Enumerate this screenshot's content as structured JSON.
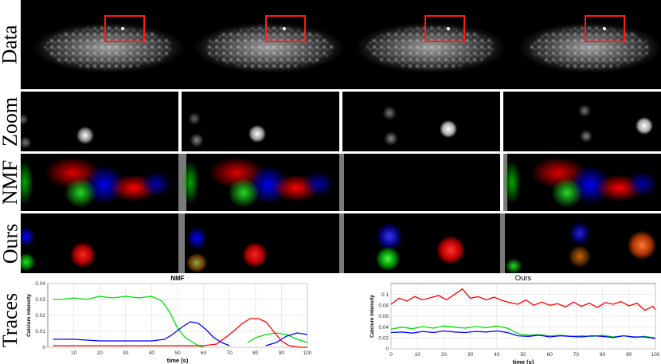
{
  "figure": {
    "row_labels": {
      "data": "Data",
      "zoom": "Zoom",
      "nmf": "NMF",
      "ours": "Ours",
      "traces": "Traces"
    },
    "colors": {
      "red": "#ff0000",
      "green": "#00e000",
      "blue": "#0000ff",
      "box": "#ff1a1a"
    }
  },
  "chart_data": [
    {
      "type": "line",
      "title": "NMF",
      "xlabel": "time (s)",
      "ylabel": "Calcium intensity",
      "xlim": [
        0,
        100
      ],
      "ylim": [
        0,
        0.04
      ],
      "xticks": [
        "10",
        "20",
        "30",
        "40",
        "50",
        "60",
        "70",
        "80",
        "90",
        "100"
      ],
      "yticks": [
        "0",
        "0.01",
        "0.02",
        "0.03",
        "0.04"
      ],
      "series": [
        {
          "color": "#00e000",
          "x": [
            2,
            5,
            10,
            15,
            20,
            25,
            30,
            35,
            40,
            44,
            47,
            50,
            53,
            56,
            58,
            60
          ],
          "y": [
            0.03,
            0.03,
            0.031,
            0.03,
            0.032,
            0.031,
            0.032,
            0.031,
            0.032,
            0.029,
            0.022,
            0.012,
            0.006,
            0.003,
            0.001,
            0.0
          ]
        },
        {
          "color": "#0000ff",
          "x": [
            2,
            10,
            20,
            30,
            40,
            45,
            48,
            52,
            55,
            58,
            61,
            64,
            67,
            70
          ],
          "y": [
            0.005,
            0.005,
            0.004,
            0.004,
            0.004,
            0.005,
            0.008,
            0.013,
            0.016,
            0.015,
            0.011,
            0.006,
            0.003,
            0.001
          ]
        },
        {
          "color": "#00e000",
          "x": [
            77,
            80,
            84,
            88,
            92,
            96,
            100
          ],
          "y": [
            0.003,
            0.006,
            0.008,
            0.009,
            0.008,
            0.005,
            0.003
          ]
        },
        {
          "color": "#0000ff",
          "x": [
            84,
            88,
            92,
            96,
            100
          ],
          "y": [
            0.001,
            0.003,
            0.007,
            0.009,
            0.008
          ]
        },
        {
          "color": "#ff0000",
          "x": [
            2,
            10,
            20,
            30,
            40,
            50,
            60,
            65,
            70,
            75,
            78,
            81,
            84,
            87,
            90,
            93,
            97,
            100
          ],
          "y": [
            0.001,
            0.001,
            0.001,
            0.001,
            0.001,
            0.001,
            0.001,
            0.002,
            0.008,
            0.015,
            0.018,
            0.018,
            0.016,
            0.01,
            0.004,
            0.001,
            0.0,
            0.0
          ]
        }
      ]
    },
    {
      "type": "line",
      "title": "Ours",
      "xlabel": "time (s)",
      "ylabel": "Calcium intensity",
      "xlim": [
        0,
        100
      ],
      "ylim": [
        0,
        0.12
      ],
      "xticks": [
        "0",
        "10",
        "20",
        "30",
        "40",
        "50",
        "60",
        "70",
        "80",
        "90",
        "100"
      ],
      "yticks": [
        "0",
        "0.02",
        "0.04",
        "0.06",
        "0.08",
        "0.1"
      ],
      "series": [
        {
          "color": "#ff0000",
          "x": [
            0,
            3,
            6,
            9,
            12,
            15,
            18,
            21,
            24,
            27,
            30,
            33,
            36,
            39,
            42,
            45,
            48,
            51,
            54,
            57,
            60,
            63,
            66,
            69,
            72,
            75,
            78,
            81,
            84,
            87,
            90,
            93,
            96,
            99,
            100
          ],
          "y": [
            0.082,
            0.093,
            0.088,
            0.096,
            0.09,
            0.094,
            0.098,
            0.09,
            0.1,
            0.11,
            0.093,
            0.096,
            0.09,
            0.095,
            0.089,
            0.085,
            0.082,
            0.09,
            0.08,
            0.086,
            0.08,
            0.083,
            0.077,
            0.086,
            0.078,
            0.084,
            0.076,
            0.085,
            0.082,
            0.087,
            0.079,
            0.084,
            0.071,
            0.078,
            0.072
          ]
        },
        {
          "color": "#00e000",
          "x": [
            0,
            4,
            8,
            12,
            16,
            20,
            24,
            28,
            32,
            36,
            40,
            44,
            48,
            52,
            56,
            60,
            64,
            68,
            72,
            76,
            80,
            84,
            88,
            92,
            96,
            100
          ],
          "y": [
            0.036,
            0.04,
            0.037,
            0.041,
            0.038,
            0.042,
            0.04,
            0.038,
            0.041,
            0.039,
            0.042,
            0.038,
            0.028,
            0.025,
            0.026,
            0.024,
            0.025,
            0.023,
            0.024,
            0.023,
            0.025,
            0.022,
            0.024,
            0.021,
            0.023,
            0.02
          ]
        },
        {
          "color": "#0000ff",
          "x": [
            0,
            4,
            8,
            12,
            16,
            20,
            24,
            28,
            32,
            36,
            40,
            44,
            48,
            52,
            56,
            60,
            64,
            68,
            72,
            76,
            80,
            84,
            88,
            92,
            96,
            100
          ],
          "y": [
            0.03,
            0.031,
            0.029,
            0.032,
            0.03,
            0.033,
            0.031,
            0.03,
            0.032,
            0.031,
            0.033,
            0.03,
            0.024,
            0.023,
            0.025,
            0.022,
            0.024,
            0.023,
            0.022,
            0.024,
            0.023,
            0.021,
            0.024,
            0.022,
            0.022,
            0.019
          ]
        }
      ]
    }
  ]
}
